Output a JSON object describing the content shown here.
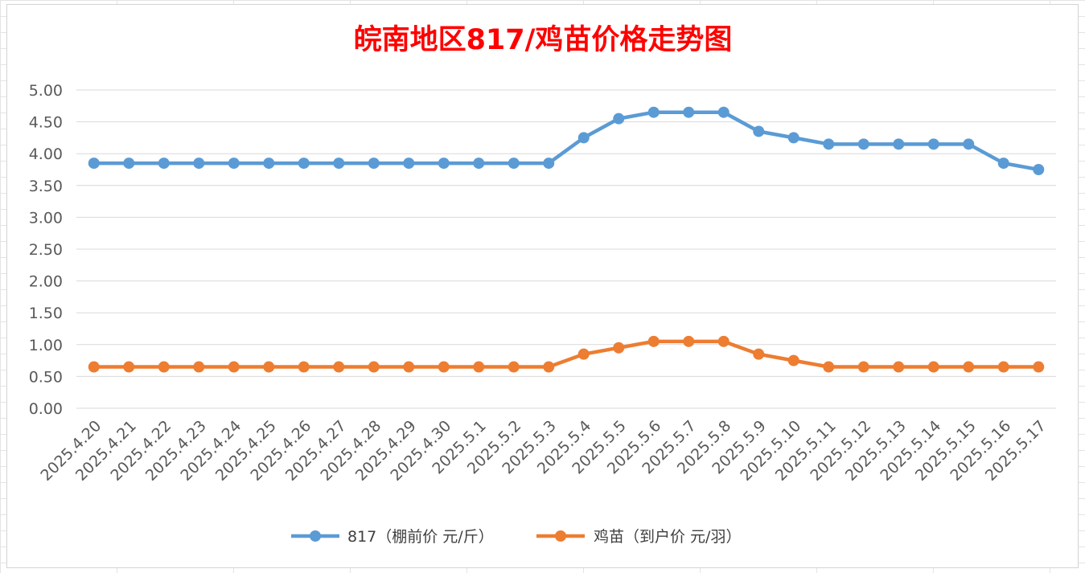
{
  "chart_data": {
    "type": "line",
    "title": "皖南地区817/鸡苗价格走势图",
    "xlabel": "",
    "ylabel": "",
    "ylim": [
      0,
      5
    ],
    "ytick_step": 0.5,
    "yticks": [
      "0.00",
      "0.50",
      "1.00",
      "1.50",
      "2.00",
      "2.50",
      "3.00",
      "3.50",
      "4.00",
      "4.50",
      "5.00"
    ],
    "grid": true,
    "legend_position": "bottom",
    "categories": [
      "2025.4.20",
      "2025.4.21",
      "2025.4.22",
      "2025.4.23",
      "2025.4.24",
      "2025.4.25",
      "2025.4.26",
      "2025.4.27",
      "2025.4.28",
      "2025.4.29",
      "2025.4.30",
      "2025.5.1",
      "2025.5.2",
      "2025.5.3",
      "2025.5.4",
      "2025.5.5",
      "2025.5.6",
      "2025.5.7",
      "2025.5.8",
      "2025.5.9",
      "2025.5.10",
      "2025.5.11",
      "2025.5.12",
      "2025.5.13",
      "2025.5.14",
      "2025.5.15",
      "2025.5.16",
      "2025.5.17"
    ],
    "series": [
      {
        "name": "817（棚前价 元/斤）",
        "color": "#5b9bd5",
        "values": [
          3.85,
          3.85,
          3.85,
          3.85,
          3.85,
          3.85,
          3.85,
          3.85,
          3.85,
          3.85,
          3.85,
          3.85,
          3.85,
          3.85,
          4.25,
          4.55,
          4.65,
          4.65,
          4.65,
          4.35,
          4.25,
          4.15,
          4.15,
          4.15,
          4.15,
          4.15,
          3.85,
          3.75
        ]
      },
      {
        "name": "鸡苗（到户价 元/羽）",
        "color": "#ed7d31",
        "values": [
          0.65,
          0.65,
          0.65,
          0.65,
          0.65,
          0.65,
          0.65,
          0.65,
          0.65,
          0.65,
          0.65,
          0.65,
          0.65,
          0.65,
          0.85,
          0.95,
          1.05,
          1.05,
          1.05,
          0.85,
          0.75,
          0.65,
          0.65,
          0.65,
          0.65,
          0.65,
          0.65,
          0.65
        ]
      }
    ]
  }
}
